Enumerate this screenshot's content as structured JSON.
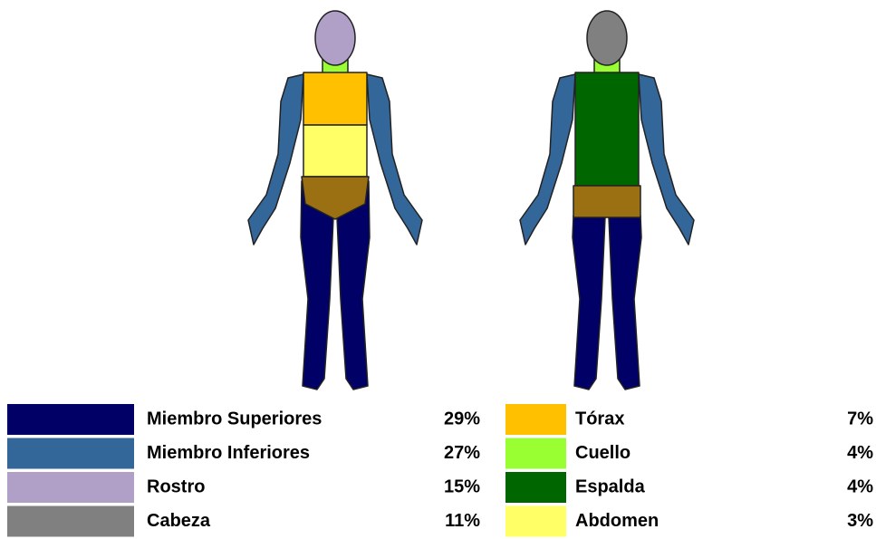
{
  "legend": {
    "items": [
      {
        "label": "Miembro Superiores",
        "percent": "29%",
        "color": "#000066"
      },
      {
        "label": "Miembro Inferiores",
        "percent": "27%",
        "color": "#336699"
      },
      {
        "label": "Rostro",
        "percent": "15%",
        "color": "#b0a0c8"
      },
      {
        "label": "Cabeza",
        "percent": "11%",
        "color": "#808080"
      },
      {
        "label": "Tórax",
        "percent": "7%",
        "color": "#ffc000"
      },
      {
        "label": "Cuello",
        "percent": "4%",
        "color": "#99ff33"
      },
      {
        "label": "Espalda",
        "percent": "4%",
        "color": "#006600"
      },
      {
        "label": "Abdomen",
        "percent": "3%",
        "color": "#ffff66"
      }
    ]
  }
}
